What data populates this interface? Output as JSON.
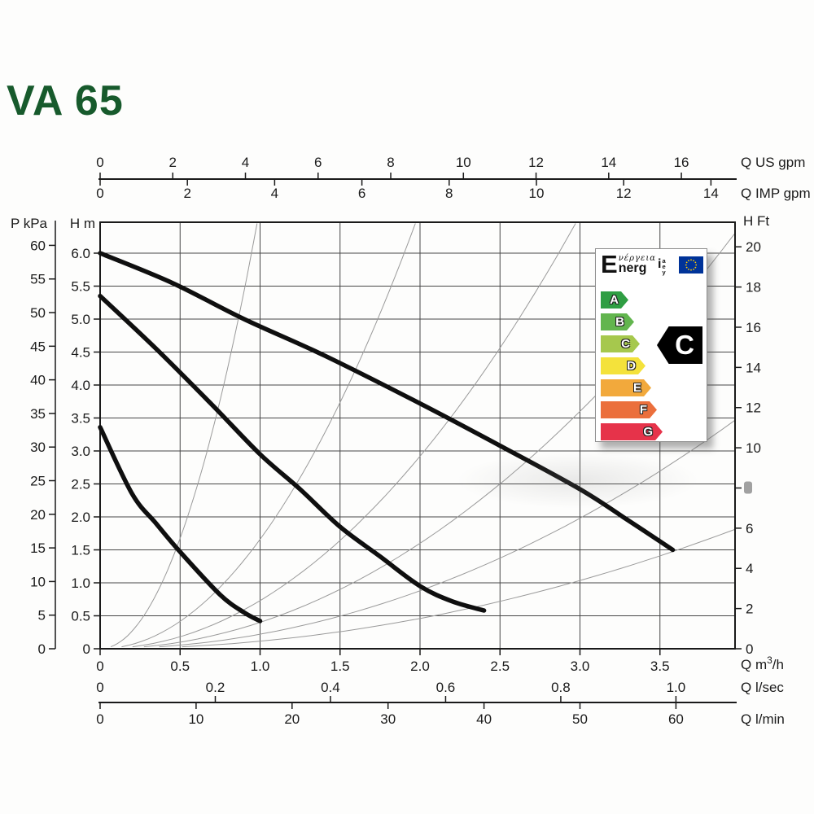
{
  "title": "VA 65",
  "title_color": "#175a2c",
  "chart_data": {
    "type": "line",
    "title": "VA 65",
    "description": "Circulator pump performance curves (head vs flow) at three speeds with system resistance curves",
    "grid": {
      "on": true,
      "x_step_m3h": 0.5,
      "y_step_m": 0.5
    },
    "xlim_m3h": [
      0,
      3.97
    ],
    "ylim_m": [
      0,
      6.47
    ],
    "x_axes": [
      {
        "id": "us_gpm",
        "label": "Q US gpm",
        "position": "top",
        "m3h_per_unit": 0.22712,
        "tick_values": [
          0,
          2,
          4,
          6,
          8,
          10,
          12,
          14,
          16
        ],
        "tick_labels": [
          "0",
          "2",
          "4",
          "6",
          "8",
          "10",
          "12",
          "14",
          "16"
        ]
      },
      {
        "id": "imp_gpm",
        "label": "Q IMP gpm",
        "position": "top",
        "m3h_per_unit": 0.27277,
        "tick_values": [
          0,
          2,
          4,
          6,
          8,
          10,
          12,
          14
        ],
        "tick_labels": [
          "0",
          "2",
          "4",
          "6",
          "8",
          "10",
          "12",
          "14"
        ]
      },
      {
        "id": "m3h",
        "label": "Q m3/h",
        "label_parts": [
          "Q m",
          "3",
          "/h"
        ],
        "position": "bottom",
        "m3h_per_unit": 1,
        "tick_values": [
          0,
          0.5,
          1,
          1.5,
          2,
          2.5,
          3,
          3.5
        ],
        "tick_labels": [
          "0",
          "0.5",
          "1.0",
          "1.5",
          "2.0",
          "2.5",
          "3.0",
          "3.5"
        ]
      },
      {
        "id": "l_sec",
        "label": "Q l/sec",
        "position": "bottom",
        "m3h_per_unit": 3.6,
        "tick_values": [
          0,
          0.2,
          0.4,
          0.6,
          0.8,
          1
        ],
        "tick_labels": [
          "0",
          "0.2",
          "0.4",
          "0.6",
          "0.8",
          "1.0"
        ]
      },
      {
        "id": "l_min",
        "label": "Q l/min",
        "position": "bottom",
        "m3h_per_unit": 0.06,
        "tick_values": [
          0,
          10,
          20,
          30,
          40,
          50,
          60
        ],
        "tick_labels": [
          "0",
          "10",
          "20",
          "30",
          "40",
          "50",
          "60"
        ]
      }
    ],
    "y_axes": [
      {
        "id": "p_kpa",
        "label": "P kPa",
        "position": "left",
        "m_per_unit": 0.10197,
        "tick_values": [
          0,
          5,
          10,
          15,
          20,
          25,
          30,
          35,
          40,
          45,
          50,
          55,
          60
        ],
        "tick_labels": [
          "0",
          "5",
          "10",
          "15",
          "20",
          "25",
          "30",
          "35",
          "40",
          "45",
          "50",
          "55",
          "60"
        ]
      },
      {
        "id": "h_m",
        "label": "H m",
        "position": "left",
        "m_per_unit": 1,
        "tick_values": [
          0,
          0.5,
          1,
          1.5,
          2,
          2.5,
          3,
          3.5,
          4,
          4.5,
          5,
          5.5,
          6
        ],
        "tick_labels": [
          "0",
          "0.5",
          "1.0",
          "1.5",
          "2.0",
          "2.5",
          "3.0",
          "3.5",
          "4.0",
          "4.5",
          "5.0",
          "5.5",
          "6.0"
        ]
      },
      {
        "id": "h_ft",
        "label": "H Ft",
        "position": "right",
        "m_per_unit": 0.3048,
        "tick_values": [
          0,
          2,
          4,
          6,
          8,
          10,
          12,
          14,
          16,
          18,
          20
        ],
        "tick_labels": [
          "0",
          "2",
          "4",
          "6",
          "8",
          "10",
          "12",
          "14",
          "16",
          "18",
          "20"
        ],
        "smudged_tick_values": [
          8
        ]
      }
    ],
    "pump_curves": [
      {
        "name": "speed-high",
        "color": "#0f0f0f",
        "points_m3h_m": [
          [
            0,
            6.0
          ],
          [
            0.45,
            5.55
          ],
          [
            0.9,
            5.0
          ],
          [
            1.4,
            4.45
          ],
          [
            2.0,
            3.72
          ],
          [
            2.5,
            3.08
          ],
          [
            3.0,
            2.42
          ],
          [
            3.3,
            1.95
          ],
          [
            3.58,
            1.5
          ]
        ]
      },
      {
        "name": "speed-mid",
        "color": "#0f0f0f",
        "points_m3h_m": [
          [
            0,
            5.35
          ],
          [
            0.35,
            4.55
          ],
          [
            0.7,
            3.7
          ],
          [
            1.0,
            2.95
          ],
          [
            1.25,
            2.42
          ],
          [
            1.5,
            1.85
          ],
          [
            1.75,
            1.4
          ],
          [
            2.0,
            0.95
          ],
          [
            2.2,
            0.72
          ],
          [
            2.4,
            0.58
          ]
        ]
      },
      {
        "name": "speed-low",
        "color": "#0f0f0f",
        "points_m3h_m": [
          [
            0,
            3.36
          ],
          [
            0.2,
            2.35
          ],
          [
            0.35,
            1.9
          ],
          [
            0.5,
            1.47
          ],
          [
            0.75,
            0.82
          ],
          [
            0.9,
            0.55
          ],
          [
            1.0,
            0.42
          ]
        ]
      }
    ],
    "system_curves": {
      "model": "H = k * Q^2",
      "color": "#9a9a9a",
      "k_values": [
        6.7,
        1.66,
        0.73,
        0.4,
        0.22,
        0.115
      ]
    }
  },
  "energy_label": {
    "logo": {
      "big_letter": "E",
      "greek": "νέργεια",
      "latin": "nerg",
      "tail_i": "i",
      "tail_stack": [
        "a",
        "e",
        "y"
      ]
    },
    "flag_stars": 12,
    "flag_bg": "#003399",
    "star_color": "#ffcc00",
    "grades": [
      {
        "letter": "A",
        "color": "#2f9e43"
      },
      {
        "letter": "B",
        "color": "#62b54e"
      },
      {
        "letter": "C",
        "color": "#a6c84d"
      },
      {
        "letter": "D",
        "color": "#f4e23b"
      },
      {
        "letter": "E",
        "color": "#f2a93c"
      },
      {
        "letter": "F",
        "color": "#eb6f3c"
      },
      {
        "letter": "G",
        "color": "#e6334a"
      }
    ],
    "current_class": "C",
    "current_class_bg": "#000000"
  }
}
